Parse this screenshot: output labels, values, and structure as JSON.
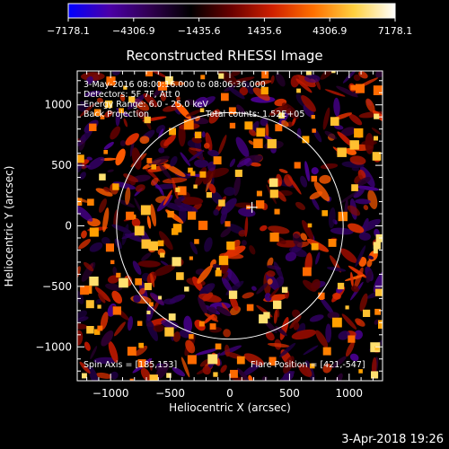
{
  "colorbar": {
    "colors": [
      "#0000ff",
      "#4b00a8",
      "#300050",
      "#000000",
      "#6a0000",
      "#d02000",
      "#ff7000",
      "#ffd040",
      "#ffffff"
    ],
    "ticks": [
      "−7178.1",
      "−4306.9",
      "−1435.6",
      "1435.6",
      "4306.9",
      "7178.1"
    ],
    "tick_values": [
      -7178.1,
      -4306.9,
      -1435.6,
      1435.6,
      4306.9,
      7178.1
    ],
    "range": [
      -7178.1,
      7178.1
    ]
  },
  "plot": {
    "title": "Reconstructed RHESSI Image",
    "xlabel": "Heliocentric X (arcsec)",
    "ylabel": "Heliocentric Y (arcsec)",
    "xlim": [
      -1280,
      1280
    ],
    "ylim": [
      -1280,
      1280
    ],
    "xticks": [
      -1000,
      -500,
      0,
      500,
      1000
    ],
    "yticks": [
      -1000,
      -500,
      0,
      500,
      1000
    ],
    "xtick_labels": [
      "−1000",
      "−500",
      "0",
      "500",
      "1000"
    ],
    "ytick_labels": [
      "−1000",
      "−500",
      "0",
      "500",
      "1000"
    ],
    "solar_radius_arcsec": 950,
    "flare_cross": [
      185,
      153
    ]
  },
  "annotations": {
    "time_range": "3-May-2016 08:00:16.000 to 08:06:36.000",
    "detectors": "Detectors: 5F 7F, Att 0",
    "energy": "Energy Range: 6.0 - 25.0 keV",
    "method": "Back Projection",
    "counts": "Total counts: 1.52E+05",
    "spin_axis": "Spin Axis = [185,153]",
    "flare_position": "Flare Position = [421,-547]"
  },
  "footer": {
    "timestamp": "3-Apr-2018 19:26"
  }
}
